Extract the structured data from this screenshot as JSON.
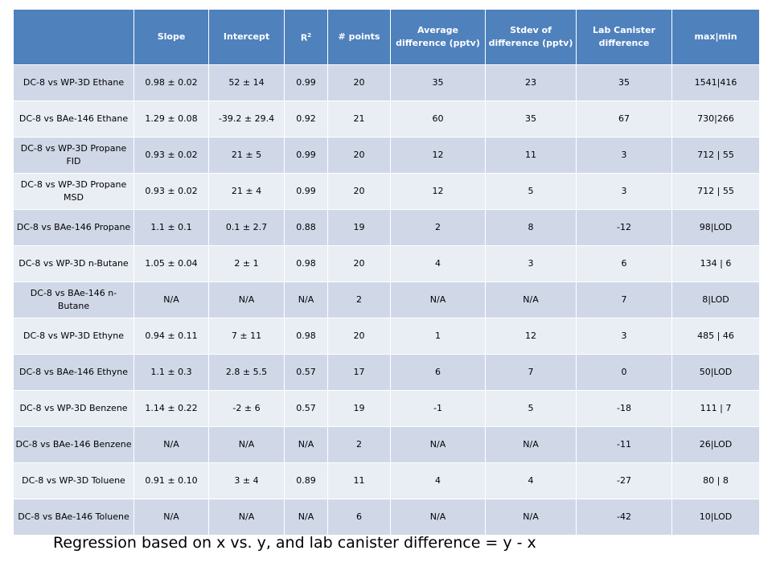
{
  "table": {
    "headers": [
      "",
      "Slope",
      "Intercept",
      "R",
      "# points",
      "Average difference (pptv)",
      "Stdev of difference (pptv)",
      "Lab Canister difference",
      "max|min"
    ],
    "r2_sup": "2",
    "rows": [
      [
        "DC-8 vs WP-3D Ethane",
        "0.98 ± 0.02",
        "52 ± 14",
        "0.99",
        "20",
        "35",
        "23",
        "35",
        "1541|416"
      ],
      [
        "DC-8 vs BAe-146 Ethane",
        "1.29 ± 0.08",
        "-39.2 ± 29.4",
        "0.92",
        "21",
        "60",
        "35",
        "67",
        "730|266"
      ],
      [
        "DC-8 vs WP-3D Propane FID",
        "0.93 ± 0.02",
        "21 ± 5",
        "0.99",
        "20",
        "12",
        "11",
        "3",
        "712 | 55"
      ],
      [
        "DC-8 vs WP-3D Propane MSD",
        "0.93 ± 0.02",
        "21 ± 4",
        "0.99",
        "20",
        "12",
        "5",
        "3",
        "712 | 55"
      ],
      [
        "DC-8 vs BAe-146 Propane",
        "1.1 ± 0.1",
        "0.1 ± 2.7",
        "0.88",
        "19",
        "2",
        "8",
        "-12",
        "98|LOD"
      ],
      [
        "DC-8 vs WP-3D n-Butane",
        "1.05 ± 0.04",
        "2 ± 1",
        "0.98",
        "20",
        "4",
        "3",
        "6",
        "134 | 6"
      ],
      [
        "DC-8 vs BAe-146 n-Butane",
        "N/A",
        "N/A",
        "N/A",
        "2",
        "N/A",
        "N/A",
        "7",
        "8|LOD"
      ],
      [
        "DC-8 vs WP-3D Ethyne",
        "0.94 ± 0.11",
        "7 ± 11",
        "0.98",
        "20",
        "1",
        "12",
        "3",
        "485 | 46"
      ],
      [
        "DC-8 vs BAe-146 Ethyne",
        "1.1 ± 0.3",
        "2.8 ± 5.5",
        "0.57",
        "17",
        "6",
        "7",
        "0",
        "50|LOD"
      ],
      [
        "DC-8 vs WP-3D Benzene",
        "1.14 ± 0.22",
        "-2 ± 6",
        "0.57",
        "19",
        "-1",
        "5",
        "-18",
        "111 | 7"
      ],
      [
        "DC-8 vs BAe-146 Benzene",
        "N/A",
        "N/A",
        "N/A",
        "2",
        "N/A",
        "N/A",
        "-11",
        "26|LOD"
      ],
      [
        "DC-8 vs WP-3D Toluene",
        "0.91 ± 0.10",
        "3 ± 4",
        "0.89",
        "11",
        "4",
        "4",
        "-27",
        "80 | 8"
      ],
      [
        "DC-8 vs BAe-146 Toluene",
        "N/A",
        "N/A",
        "N/A",
        "6",
        "N/A",
        "N/A",
        "-42",
        "10|LOD"
      ]
    ]
  },
  "footnote": "Regression based on x vs. y, and lab canister difference = y - x",
  "colors": {
    "header_bg": "#4f81bd",
    "row_odd": "#d0d8e8",
    "row_even": "#e9edf4"
  }
}
